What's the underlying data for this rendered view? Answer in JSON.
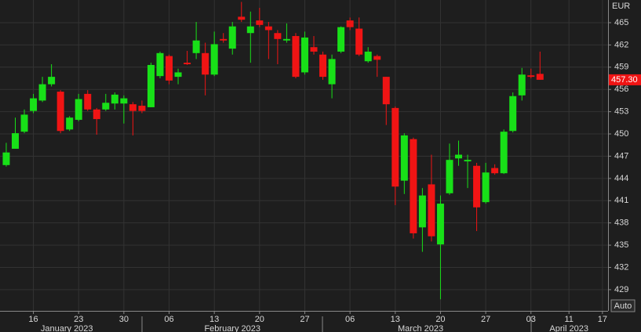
{
  "chart_data": {
    "type": "candlestick",
    "currency": "EUR",
    "auto_button": "Auto",
    "up_color": "#18e018",
    "down_color": "#f01414",
    "grid": true,
    "categories": [
      null,
      null,
      null,
      null,
      null,
      null,
      null,
      null,
      null,
      null,
      null,
      null,
      null,
      null,
      null,
      null,
      null,
      null,
      null,
      null,
      null,
      null,
      null,
      null,
      null,
      null,
      null,
      null,
      null,
      null,
      null,
      null,
      null,
      null,
      null,
      null,
      null,
      null,
      null,
      null,
      null,
      null,
      null,
      null,
      null,
      null,
      null,
      null,
      null,
      null,
      null,
      null,
      null,
      null,
      null,
      null,
      null,
      null,
      null,
      null
    ],
    "open": [
      445.8,
      448.0,
      450.3,
      453.1,
      454.5,
      456.7,
      455.7,
      450.6,
      451.9,
      455.4,
      453.3,
      453.3,
      454.1,
      454.1,
      454.0,
      453.8,
      453.6,
      457.8,
      460.5,
      457.7,
      459.6,
      460.9,
      460.9,
      458.0,
      462.8,
      461.5,
      465.8,
      463.6,
      465.3,
      464.5,
      463.6,
      462.6,
      463.2,
      458.3,
      461.7,
      460.7,
      456.7,
      461.1,
      465.3,
      464.2,
      459.8,
      460.5,
      457.7,
      453.5,
      443.7,
      449.3,
      437.4,
      443.2,
      435.1,
      442.0,
      446.7,
      446.3,
      445.7,
      440.8,
      445.4,
      444.7,
      450.4,
      455.2,
      457.9,
      458.1
    ],
    "high": [
      448.8,
      452.2,
      453.3,
      455.4,
      457.7,
      459.4,
      455.9,
      452.4,
      455.4,
      455.9,
      453.5,
      455.4,
      455.6,
      455.2,
      454.3,
      454.5,
      459.6,
      461.1,
      460.7,
      458.8,
      461.2,
      465.1,
      462.3,
      463.8,
      463.6,
      465.1,
      467.8,
      466.5,
      467.0,
      465.1,
      464.0,
      464.9,
      463.6,
      463.8,
      463.2,
      461.1,
      460.7,
      464.5,
      465.7,
      465.7,
      461.7,
      460.7,
      457.7,
      453.7,
      450.1,
      449.5,
      442.7,
      447.2,
      441.7,
      448.7,
      449.1,
      447.2,
      446.1,
      446.1,
      445.9,
      450.6,
      455.6,
      458.9,
      458.8,
      461.1
    ],
    "low": [
      445.6,
      448.0,
      450.1,
      452.8,
      454.3,
      456.4,
      450.1,
      450.4,
      451.7,
      453.1,
      449.9,
      453.1,
      453.3,
      451.4,
      449.8,
      452.8,
      453.6,
      457.5,
      456.7,
      456.7,
      459.3,
      460.1,
      455.2,
      457.8,
      462.3,
      460.7,
      465.1,
      459.6,
      464.4,
      460.1,
      459.4,
      462.3,
      457.5,
      458.0,
      460.7,
      457.3,
      454.8,
      460.9,
      464.0,
      460.5,
      459.6,
      457.7,
      451.2,
      440.4,
      441.9,
      435.9,
      434.1,
      435.5,
      427.7,
      441.8,
      445.7,
      442.7,
      436.9,
      440.6,
      444.5,
      444.6,
      450.2,
      454.5,
      457.5,
      457.3
    ],
    "close": [
      447.5,
      450.1,
      452.6,
      454.8,
      456.7,
      457.7,
      450.4,
      452.2,
      454.7,
      453.3,
      452.0,
      454.2,
      455.3,
      454.8,
      453.1,
      453.1,
      459.3,
      460.9,
      457.2,
      458.3,
      459.4,
      462.6,
      458.0,
      462.1,
      462.6,
      464.5,
      465.4,
      464.5,
      464.7,
      464.0,
      462.8,
      462.8,
      457.7,
      463.0,
      461.1,
      457.7,
      460.1,
      464.4,
      464.4,
      460.7,
      461.1,
      460.0,
      454.0,
      442.9,
      449.8,
      436.6,
      441.7,
      436.2,
      440.6,
      446.5,
      447.2,
      446.5,
      440.1,
      444.8,
      444.7,
      450.3,
      455.1,
      458.0,
      457.7,
      457.3
    ],
    "last_price": {
      "value": 457.3,
      "label": "457.30"
    },
    "xlim": [
      -0.69,
      66.52
    ],
    "xticks": [
      {
        "value": 3,
        "label": "16"
      },
      {
        "value": 8,
        "label": "23"
      },
      {
        "value": 13,
        "label": "30"
      },
      {
        "value": 18,
        "label": "06"
      },
      {
        "value": 23,
        "label": "13"
      },
      {
        "value": 28,
        "label": "20"
      },
      {
        "value": 33,
        "label": "27"
      },
      {
        "value": 38,
        "label": "06"
      },
      {
        "value": 43,
        "label": "13"
      },
      {
        "value": 48,
        "label": "20"
      },
      {
        "value": 53,
        "label": "27"
      },
      {
        "value": 58,
        "label": "03"
      },
      {
        "value": 62.2,
        "label": "11"
      },
      {
        "value": 65.9,
        "label": "17"
      }
    ],
    "month_labels": [
      {
        "value": 6.7,
        "label": "January 2023"
      },
      {
        "value": 25,
        "label": "February 2023"
      },
      {
        "value": 45.8,
        "label": "March 2023"
      },
      {
        "value": 62.2,
        "label": "April 2023"
      }
    ],
    "ylim": [
      426.14,
      468.06
    ],
    "yticks": [
      429,
      432,
      435,
      438,
      441,
      444,
      447,
      450,
      453,
      456,
      459,
      462,
      465
    ]
  }
}
